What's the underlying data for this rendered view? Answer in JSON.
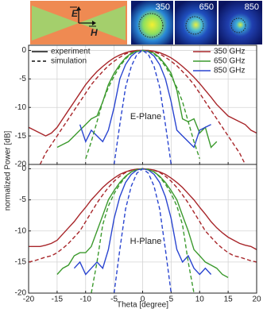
{
  "insets": {
    "field_labels": [
      "E",
      "H"
    ],
    "image_labels": [
      "350",
      "650",
      "850"
    ]
  },
  "ylabel": "normalized Power [dB]",
  "chart_data": [
    {
      "type": "line",
      "annotation": "E-Plane",
      "line_styles": [
        {
          "label": "experiment",
          "dash": false
        },
        {
          "label": "simulation",
          "dash": true
        }
      ],
      "x": [
        -20,
        -19,
        -18,
        -17,
        -16,
        -15,
        -14,
        -13,
        -12,
        -11,
        -10,
        -9,
        -8,
        -7,
        -6,
        -5,
        -4,
        -3,
        -2,
        -1,
        0,
        1,
        2,
        3,
        4,
        5,
        6,
        7,
        8,
        9,
        10,
        11,
        12,
        13,
        14,
        15,
        16,
        17,
        18,
        19,
        20
      ],
      "xlim": [
        -20,
        20
      ],
      "xticks": [
        -20,
        -15,
        -10,
        -5,
        0,
        5,
        10,
        15,
        20
      ],
      "ylim": [
        -20,
        0.9
      ],
      "yticks": [
        0,
        -5,
        -10,
        -15,
        -20
      ],
      "grid": true,
      "series": [
        {
          "name": "350 GHz",
          "color": "#a8262a",
          "dash": false,
          "values": [
            -13.5,
            -14,
            -14.5,
            -15,
            -14.5,
            -13.5,
            -12,
            -10.5,
            -9,
            -7.5,
            -6,
            -4.8,
            -3.7,
            -2.8,
            -2,
            -1.3,
            -0.8,
            -0.4,
            -0.15,
            0,
            0,
            0,
            -0.15,
            -0.4,
            -0.8,
            -1.3,
            -2,
            -2.8,
            -3.7,
            -4.7,
            -5.8,
            -7,
            -8.2,
            -9.5,
            -10.5,
            -11.5,
            -12,
            -12.5,
            -13,
            -14,
            -14.5
          ]
        },
        {
          "name": "650 GHz",
          "color": "#3c9a2e",
          "dash": false,
          "values": [
            null,
            null,
            null,
            null,
            null,
            -17,
            -16.5,
            -16,
            -15,
            -14,
            -13,
            -12,
            -11.5,
            -9,
            -6,
            -4,
            -2.5,
            -1.3,
            -0.5,
            -0.1,
            0,
            -0.1,
            -0.5,
            -1.3,
            -2.5,
            -4,
            -7,
            -12,
            -12.5,
            -12,
            -14.5,
            -13.5,
            -17,
            -16,
            null,
            null,
            null,
            null,
            null,
            null,
            null
          ]
        },
        {
          "name": "850 GHz",
          "color": "#2a45d0",
          "dash": false,
          "values": [
            null,
            null,
            null,
            null,
            null,
            null,
            null,
            null,
            null,
            -13,
            -16,
            -14,
            -15,
            -16,
            -14,
            -10,
            -5,
            -2.5,
            -1,
            -0.2,
            0,
            -0.2,
            -1,
            -2.5,
            -5,
            -9,
            -14,
            -15,
            -16,
            -17,
            -14,
            -13.5,
            -13,
            null,
            null,
            null,
            null,
            null,
            null,
            null,
            null
          ]
        },
        {
          "color": "#a8262a",
          "dash": true,
          "values": [
            null,
            null,
            -20,
            -18,
            -16.5,
            -15,
            -13.5,
            -12,
            -10.5,
            -9,
            -7.5,
            -6,
            -4.8,
            -3.7,
            -2.7,
            -1.9,
            -1.2,
            -0.6,
            -0.25,
            -0.05,
            0,
            -0.05,
            -0.25,
            -0.6,
            -1.2,
            -1.9,
            -2.7,
            -3.7,
            -4.8,
            -6,
            -7.5,
            -9,
            -10.5,
            -12,
            -13.5,
            -15,
            -16.5,
            -18,
            -20,
            null,
            null
          ]
        },
        {
          "color": "#3c9a2e",
          "dash": true,
          "values": [
            null,
            null,
            null,
            null,
            null,
            null,
            null,
            null,
            null,
            null,
            -19,
            -16,
            -12.5,
            -9,
            -6.5,
            -4.5,
            -2.8,
            -1.5,
            -0.6,
            -0.15,
            0,
            -0.15,
            -0.6,
            -1.5,
            -2.8,
            -4.5,
            -6.5,
            -9,
            -12.5,
            -16,
            -19,
            null,
            null,
            null,
            null,
            null,
            null,
            null,
            null,
            null,
            null
          ]
        },
        {
          "color": "#2a45d0",
          "dash": true,
          "values": [
            null,
            null,
            null,
            null,
            null,
            null,
            null,
            null,
            null,
            null,
            null,
            null,
            null,
            null,
            null,
            -20,
            -13,
            -6.5,
            -2.8,
            -0.7,
            0,
            -0.7,
            -2.8,
            -6.5,
            -13,
            -20,
            null,
            null,
            null,
            null,
            null,
            null,
            null,
            null,
            null,
            null,
            null,
            null,
            null,
            null,
            null
          ]
        }
      ]
    },
    {
      "type": "line",
      "annotation": "H-Plane",
      "xlabel": "Theta [degree]",
      "x": [
        -20,
        -19,
        -18,
        -17,
        -16,
        -15,
        -14,
        -13,
        -12,
        -11,
        -10,
        -9,
        -8,
        -7,
        -6,
        -5,
        -4,
        -3,
        -2,
        -1,
        0,
        1,
        2,
        3,
        4,
        5,
        6,
        7,
        8,
        9,
        10,
        11,
        12,
        13,
        14,
        15,
        16,
        17,
        18,
        19,
        20
      ],
      "xlim": [
        -20,
        20
      ],
      "xticks": [
        -20,
        -15,
        -10,
        -5,
        0,
        5,
        10,
        15,
        20
      ],
      "ylim": [
        -20,
        0.7
      ],
      "yticks": [
        0,
        -5,
        -10,
        -15,
        -20
      ],
      "grid": true,
      "series": [
        {
          "color": "#a8262a",
          "dash": false,
          "values": [
            -12.5,
            -12.5,
            -12.5,
            -12.3,
            -12,
            -11.5,
            -10.5,
            -9.5,
            -8.5,
            -7.3,
            -6.2,
            -5,
            -4,
            -3,
            -2.2,
            -1.5,
            -0.9,
            -0.5,
            -0.2,
            -0.05,
            0,
            -0.05,
            -0.2,
            -0.5,
            -0.9,
            -1.5,
            -2.2,
            -3,
            -4,
            -5,
            -6.2,
            -7.3,
            -8.5,
            -9.5,
            -10.3,
            -11,
            -11.5,
            -12,
            -12.3,
            -12.5,
            -13
          ]
        },
        {
          "color": "#3c9a2e",
          "dash": false,
          "values": [
            null,
            null,
            null,
            null,
            null,
            -17,
            -16,
            -15.5,
            -14,
            -13.5,
            -13.5,
            -12.5,
            -10,
            -7.5,
            -5,
            -3.5,
            -2.2,
            -1.2,
            -0.5,
            -0.1,
            0,
            -0.1,
            -0.5,
            -1.2,
            -2.2,
            -3.5,
            -5,
            -7.5,
            -10,
            -13,
            -14,
            -15,
            -15.5,
            -16,
            -17,
            -17.5,
            null,
            null,
            null,
            null,
            null
          ]
        },
        {
          "color": "#2a45d0",
          "dash": false,
          "values": [
            null,
            null,
            null,
            null,
            null,
            null,
            null,
            null,
            -16,
            -15,
            -17,
            -16,
            -15,
            -16,
            -13,
            -8,
            -4.5,
            -2.2,
            -0.9,
            -0.2,
            0,
            -0.2,
            -0.9,
            -2.2,
            -4.5,
            -8,
            -13,
            -15,
            -14,
            -16,
            -17,
            -16,
            -17,
            null,
            null,
            null,
            null,
            null,
            null,
            null,
            null
          ]
        },
        {
          "color": "#a8262a",
          "dash": true,
          "values": [
            -15,
            -14.8,
            -14.5,
            -14.2,
            -14,
            -13.5,
            -12.8,
            -12,
            -11,
            -10,
            -8.5,
            -7,
            -5.5,
            -4.2,
            -3,
            -2,
            -1.2,
            -0.6,
            -0.25,
            -0.05,
            0,
            -0.05,
            -0.25,
            -0.6,
            -1.2,
            -2,
            -3,
            -4.2,
            -5.5,
            -7,
            -8.5,
            -10,
            -11,
            -12,
            -12.8,
            -13.5,
            -14,
            -14.2,
            -14.5,
            -14.8,
            -15
          ]
        },
        {
          "color": "#3c9a2e",
          "dash": true,
          "values": [
            null,
            null,
            null,
            null,
            null,
            null,
            null,
            null,
            null,
            null,
            null,
            -20,
            -15,
            -9,
            -6,
            -4,
            -2.5,
            -1.3,
            -0.5,
            -0.1,
            0,
            -0.1,
            -0.5,
            -1.3,
            -2.5,
            -4,
            -6,
            -9,
            -15,
            -20,
            null,
            null,
            null,
            null,
            null,
            null,
            null,
            null,
            null,
            null,
            null
          ]
        },
        {
          "color": "#2a45d0",
          "dash": true,
          "values": [
            null,
            null,
            null,
            null,
            null,
            null,
            null,
            null,
            null,
            null,
            null,
            null,
            null,
            null,
            null,
            -20,
            -13,
            -6.5,
            -2.8,
            -0.7,
            0,
            -0.7,
            -2.8,
            -6.5,
            -13,
            -20,
            null,
            null,
            null,
            null,
            null,
            null,
            null,
            null,
            null,
            null,
            null,
            null,
            null,
            null,
            null
          ]
        }
      ]
    }
  ]
}
